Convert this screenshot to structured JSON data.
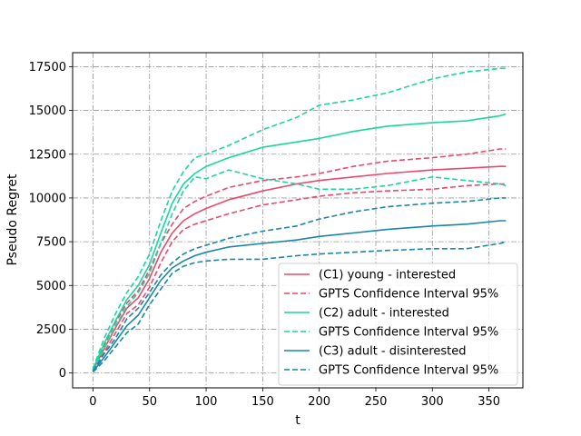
{
  "chart_data": {
    "type": "line",
    "title": "",
    "xlabel": "t",
    "ylabel": "Pseudo Regret",
    "xlim": [
      -18,
      380
    ],
    "ylim": [
      -850,
      18300
    ],
    "xticks": [
      0,
      50,
      100,
      150,
      200,
      250,
      300,
      350
    ],
    "yticks": [
      0,
      2500,
      5000,
      7500,
      10000,
      12500,
      15000,
      17500
    ],
    "grid": true,
    "legend_position": "lower-right",
    "series": [
      {
        "name": "(C1) young - interested",
        "color": "#e84a6c",
        "style": "solid",
        "x": [
          0,
          10,
          20,
          30,
          40,
          50,
          60,
          70,
          80,
          90,
          100,
          120,
          150,
          180,
          200,
          230,
          260,
          300,
          330,
          360,
          365
        ],
        "y": [
          150,
          1400,
          2600,
          3700,
          4300,
          5400,
          6900,
          8000,
          8700,
          9100,
          9400,
          9900,
          10400,
          10800,
          11000,
          11200,
          11400,
          11600,
          11700,
          11800,
          11800
        ]
      },
      {
        "name": "GPTS Confidence Interval 95%",
        "color": "#e84a6c",
        "style": "dashed",
        "x": [
          0,
          10,
          20,
          30,
          40,
          50,
          60,
          70,
          80,
          90,
          100,
          120,
          150,
          180,
          200,
          230,
          260,
          300,
          330,
          360,
          365
        ],
        "y": [
          200,
          1600,
          2900,
          4000,
          4700,
          5900,
          7400,
          8500,
          9400,
          9800,
          10100,
          10600,
          11000,
          11200,
          11400,
          11800,
          12100,
          12300,
          12500,
          12800,
          12800
        ]
      },
      {
        "name": "",
        "color": "#e84a6c",
        "style": "dashed",
        "x": [
          0,
          10,
          20,
          30,
          40,
          50,
          60,
          70,
          80,
          90,
          100,
          120,
          150,
          180,
          200,
          230,
          260,
          300,
          330,
          360,
          365
        ],
        "y": [
          100,
          1200,
          2300,
          3400,
          3900,
          4900,
          6300,
          7500,
          8200,
          8500,
          8700,
          9100,
          9600,
          9900,
          10100,
          10300,
          10400,
          10500,
          10700,
          10800,
          10800
        ]
      },
      {
        "name": "(C2) adult - interested",
        "color": "#1ad6a0",
        "style": "solid",
        "x": [
          0,
          10,
          20,
          30,
          40,
          50,
          60,
          70,
          80,
          90,
          100,
          120,
          150,
          180,
          200,
          230,
          260,
          300,
          330,
          360,
          365
        ],
        "y": [
          200,
          1700,
          3000,
          4200,
          5000,
          6200,
          8000,
          9700,
          10800,
          11400,
          11800,
          12300,
          12900,
          13200,
          13400,
          13800,
          14100,
          14300,
          14400,
          14700,
          14800
        ]
      },
      {
        "name": "GPTS Confidence Interval 95%",
        "color": "#1ad6a0",
        "style": "dashed",
        "x": [
          0,
          10,
          20,
          30,
          40,
          50,
          60,
          70,
          80,
          90,
          100,
          120,
          150,
          180,
          200,
          230,
          260,
          300,
          330,
          360,
          365
        ],
        "y": [
          250,
          2000,
          3400,
          4600,
          5500,
          6800,
          8700,
          10400,
          11500,
          12300,
          12500,
          13000,
          13900,
          14600,
          15300,
          15600,
          16000,
          16800,
          17200,
          17400,
          17400
        ]
      },
      {
        "name": "",
        "color": "#1ad6a0",
        "style": "dashed",
        "x": [
          0,
          10,
          20,
          30,
          40,
          50,
          60,
          70,
          80,
          90,
          100,
          120,
          150,
          180,
          200,
          230,
          260,
          300,
          330,
          360,
          365
        ],
        "y": [
          150,
          1400,
          2700,
          3800,
          4600,
          5700,
          7400,
          9100,
          10400,
          11200,
          11100,
          11600,
          11100,
          10800,
          10500,
          10500,
          10700,
          11200,
          11000,
          10800,
          10700
        ]
      },
      {
        "name": "(C3) adult - disinterested",
        "color": "#1a86a8",
        "style": "solid",
        "x": [
          0,
          10,
          20,
          30,
          40,
          50,
          60,
          70,
          80,
          90,
          100,
          120,
          150,
          180,
          200,
          230,
          260,
          300,
          330,
          360,
          365
        ],
        "y": [
          80,
          900,
          1800,
          2700,
          3300,
          4300,
          5300,
          6000,
          6400,
          6700,
          6900,
          7200,
          7400,
          7600,
          7800,
          8000,
          8200,
          8400,
          8500,
          8700,
          8700
        ]
      },
      {
        "name": "GPTS Confidence Interval 95%",
        "color": "#1a86a8",
        "style": "dashed",
        "x": [
          0,
          10,
          20,
          30,
          40,
          50,
          60,
          70,
          80,
          90,
          100,
          120,
          150,
          180,
          200,
          230,
          260,
          300,
          330,
          360,
          365
        ],
        "y": [
          120,
          1100,
          2000,
          3100,
          3700,
          4600,
          5600,
          6300,
          6800,
          7100,
          7300,
          7700,
          8100,
          8400,
          8800,
          9200,
          9500,
          9700,
          9800,
          10000,
          10000
        ]
      },
      {
        "name": "",
        "color": "#1a86a8",
        "style": "dashed",
        "x": [
          0,
          10,
          20,
          30,
          40,
          50,
          60,
          70,
          80,
          90,
          100,
          120,
          150,
          180,
          200,
          230,
          260,
          300,
          330,
          360,
          365
        ],
        "y": [
          50,
          700,
          1500,
          2300,
          2800,
          3900,
          4800,
          5700,
          6100,
          6300,
          6400,
          6500,
          6500,
          6700,
          6800,
          6900,
          7000,
          7100,
          7100,
          7400,
          7500
        ]
      }
    ]
  }
}
